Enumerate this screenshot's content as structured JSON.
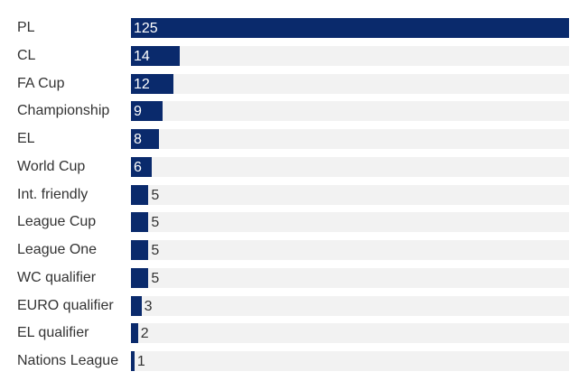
{
  "chart_data": {
    "type": "bar",
    "orientation": "horizontal",
    "categories": [
      "PL",
      "CL",
      "FA Cup",
      "Championship",
      "EL",
      "World Cup",
      "Int. friendly",
      "League Cup",
      "League One",
      "WC qualifier",
      "EURO qualifier",
      "EL qualifier",
      "Nations League"
    ],
    "values": [
      125,
      14,
      12,
      9,
      8,
      6,
      5,
      5,
      5,
      5,
      3,
      2,
      1
    ],
    "xlim": [
      0,
      125
    ],
    "grid": false,
    "colors": {
      "bar": "#0a2a6c",
      "track": "#f2f2f2",
      "label": "#333333",
      "value_inside": "#ffffff",
      "value_outside": "#333333"
    }
  }
}
